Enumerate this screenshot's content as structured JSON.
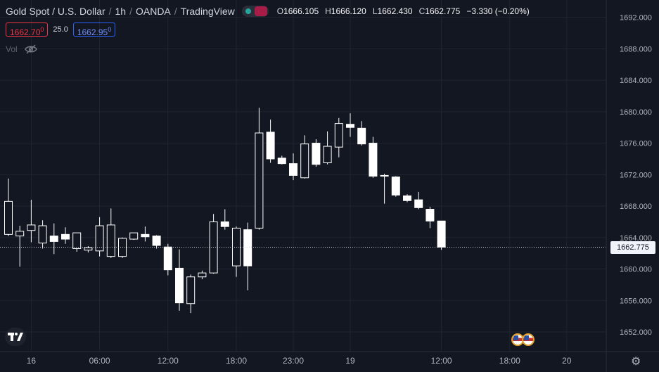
{
  "header": {
    "symbol_name": "Gold Spot / U.S. Dollar",
    "interval": "1h",
    "broker": "OANDA",
    "platform": "TradingView",
    "sep": "/"
  },
  "ohlc": {
    "open_key": "O",
    "open": "1666.105",
    "high_key": "H",
    "high": "1666.120",
    "low_key": "L",
    "low": "1662.430",
    "close_key": "C",
    "close": "1662.775",
    "change": "−3.330 (−0.20%)"
  },
  "trade": {
    "sell_price": "1662.70",
    "sell_sup": "0",
    "spread": "25.0",
    "buy_price": "1662.95",
    "buy_sup": "0"
  },
  "volume": {
    "label": "Vol",
    "icon": "eye-off-icon"
  },
  "last_price_label": "1662.775",
  "colors": {
    "background": "#131722",
    "candle_up": "#ffffff",
    "candle_down": "#ffffff",
    "grid": "#1f2430",
    "accent_sell": "#f23645",
    "accent_buy": "#2962ff"
  },
  "chart_data": {
    "type": "candlestick",
    "symbol": "Gold Spot / U.S. Dollar",
    "y_ticks": [
      "1692.000",
      "1688.000",
      "1684.000",
      "1680.000",
      "1676.000",
      "1672.000",
      "1668.000",
      "1664.000",
      "1660.000",
      "1656.000",
      "1652.000"
    ],
    "ylim": [
      1649.5,
      1694.2
    ],
    "x_ticks": [
      {
        "label": "16",
        "index": 2
      },
      {
        "label": "06:00",
        "index": 8
      },
      {
        "label": "12:00",
        "index": 14
      },
      {
        "label": "18:00",
        "index": 20
      },
      {
        "label": "23:00",
        "index": 25
      },
      {
        "label": "19",
        "index": 30
      },
      {
        "label": "12:00",
        "index": 38
      },
      {
        "label": "18:00",
        "index": 44
      },
      {
        "label": "20",
        "index": 49
      }
    ],
    "last_price": 1662.775,
    "candles": [
      {
        "o": 1664.4,
        "h": 1671.5,
        "l": 1664.2,
        "c": 1668.6
      },
      {
        "o": 1664.2,
        "h": 1665.5,
        "l": 1660.3,
        "c": 1664.8
      },
      {
        "o": 1664.9,
        "h": 1668.8,
        "l": 1663.4,
        "c": 1665.6
      },
      {
        "o": 1663.3,
        "h": 1666.2,
        "l": 1662.6,
        "c": 1665.5
      },
      {
        "o": 1664.2,
        "h": 1665.8,
        "l": 1661.9,
        "c": 1663.5
      },
      {
        "o": 1664.4,
        "h": 1665.3,
        "l": 1663.2,
        "c": 1663.8
      },
      {
        "o": 1662.6,
        "h": 1664.4,
        "l": 1662.2,
        "c": 1664.6
      },
      {
        "o": 1662.4,
        "h": 1662.9,
        "l": 1662.1,
        "c": 1662.7
      },
      {
        "o": 1662.3,
        "h": 1666.6,
        "l": 1661.6,
        "c": 1665.5
      },
      {
        "o": 1661.6,
        "h": 1667.7,
        "l": 1661.4,
        "c": 1665.6
      },
      {
        "o": 1661.6,
        "h": 1664.0,
        "l": 1661.4,
        "c": 1663.9
      },
      {
        "o": 1663.8,
        "h": 1664.6,
        "l": 1663.7,
        "c": 1664.6
      },
      {
        "o": 1664.4,
        "h": 1665.4,
        "l": 1663.5,
        "c": 1664.1
      },
      {
        "o": 1664.2,
        "h": 1664.3,
        "l": 1662.6,
        "c": 1663.0
      },
      {
        "o": 1662.8,
        "h": 1663.2,
        "l": 1659.2,
        "c": 1659.9
      },
      {
        "o": 1660.1,
        "h": 1662.5,
        "l": 1654.7,
        "c": 1655.7
      },
      {
        "o": 1655.6,
        "h": 1659.3,
        "l": 1654.4,
        "c": 1659.0
      },
      {
        "o": 1659.0,
        "h": 1659.8,
        "l": 1658.7,
        "c": 1659.5
      },
      {
        "o": 1659.5,
        "h": 1667.0,
        "l": 1659.4,
        "c": 1666.0
      },
      {
        "o": 1666.0,
        "h": 1667.6,
        "l": 1665.0,
        "c": 1665.4
      },
      {
        "o": 1660.4,
        "h": 1665.4,
        "l": 1659.0,
        "c": 1665.2
      },
      {
        "o": 1665.0,
        "h": 1665.9,
        "l": 1657.3,
        "c": 1660.4
      },
      {
        "o": 1665.2,
        "h": 1680.5,
        "l": 1665.0,
        "c": 1677.3
      },
      {
        "o": 1677.4,
        "h": 1679.0,
        "l": 1673.5,
        "c": 1674.0
      },
      {
        "o": 1674.1,
        "h": 1674.4,
        "l": 1673.3,
        "c": 1673.4
      },
      {
        "o": 1673.4,
        "h": 1674.7,
        "l": 1671.3,
        "c": 1671.9
      },
      {
        "o": 1671.6,
        "h": 1677.0,
        "l": 1671.5,
        "c": 1675.9
      },
      {
        "o": 1676.0,
        "h": 1676.5,
        "l": 1673.0,
        "c": 1673.3
      },
      {
        "o": 1673.5,
        "h": 1677.5,
        "l": 1673.3,
        "c": 1675.6
      },
      {
        "o": 1675.5,
        "h": 1679.2,
        "l": 1674.2,
        "c": 1678.5
      },
      {
        "o": 1678.4,
        "h": 1679.8,
        "l": 1676.8,
        "c": 1678.0
      },
      {
        "o": 1677.9,
        "h": 1678.8,
        "l": 1675.7,
        "c": 1675.9
      },
      {
        "o": 1676.0,
        "h": 1676.8,
        "l": 1671.6,
        "c": 1671.8
      },
      {
        "o": 1671.9,
        "h": 1672.1,
        "l": 1668.3,
        "c": 1671.8
      },
      {
        "o": 1671.7,
        "h": 1671.8,
        "l": 1669.2,
        "c": 1669.4
      },
      {
        "o": 1669.3,
        "h": 1669.5,
        "l": 1668.5,
        "c": 1668.7
      },
      {
        "o": 1668.8,
        "h": 1669.8,
        "l": 1667.6,
        "c": 1667.8
      },
      {
        "o": 1667.6,
        "h": 1667.9,
        "l": 1665.2,
        "c": 1666.1
      },
      {
        "o": 1666.105,
        "h": 1666.12,
        "l": 1662.43,
        "c": 1662.775
      }
    ]
  }
}
